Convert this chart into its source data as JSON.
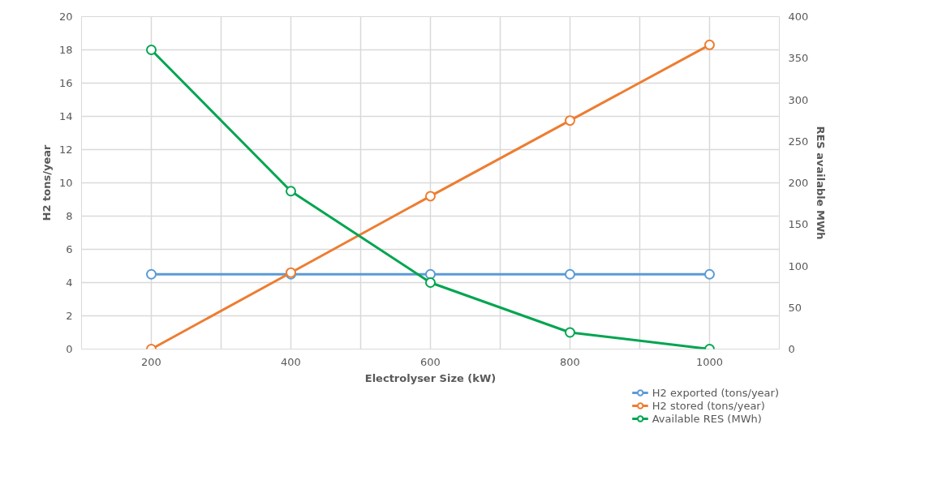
{
  "chart_data": {
    "type": "line",
    "xlabel": "Electrolyser Size (kW)",
    "ylabel": "H2 tons/year",
    "y2label": "RES available MWh",
    "x": [
      200,
      400,
      600,
      800,
      1000
    ],
    "xlim": [
      100,
      1100
    ],
    "xticks": [
      {
        "value": 100,
        "label": null
      },
      200,
      {
        "value": 300,
        "label": null
      },
      400,
      {
        "value": 500,
        "label": null
      },
      600,
      {
        "value": 700,
        "label": null
      },
      800,
      {
        "value": 900,
        "label": null
      },
      1000,
      {
        "value": 1100,
        "label": null
      }
    ],
    "ylim": [
      0,
      20
    ],
    "yticks": [
      0,
      2,
      4,
      6,
      8,
      10,
      12,
      14,
      16,
      18,
      20
    ],
    "y2lim": [
      0,
      400
    ],
    "y2ticks": [
      0,
      50,
      100,
      150,
      200,
      250,
      300,
      350,
      400
    ],
    "series": [
      {
        "name": "H2 exported (tons/year)",
        "color": "#5b9bd5",
        "values": [
          4.5,
          4.5,
          4.5,
          4.5,
          4.5
        ]
      },
      {
        "name": "H2 stored (tons/year)",
        "color": "#ed7d31",
        "values": [
          0,
          4.6,
          9.2,
          13.75,
          18.3
        ]
      },
      {
        "name": "Available RES (MWh)",
        "color": "#00a550",
        "axis": "y2",
        "values": [
          360,
          190,
          80,
          20,
          0
        ]
      }
    ],
    "marker": "circle",
    "line_style": "solid",
    "grid": true,
    "legend": "bottom right"
  }
}
